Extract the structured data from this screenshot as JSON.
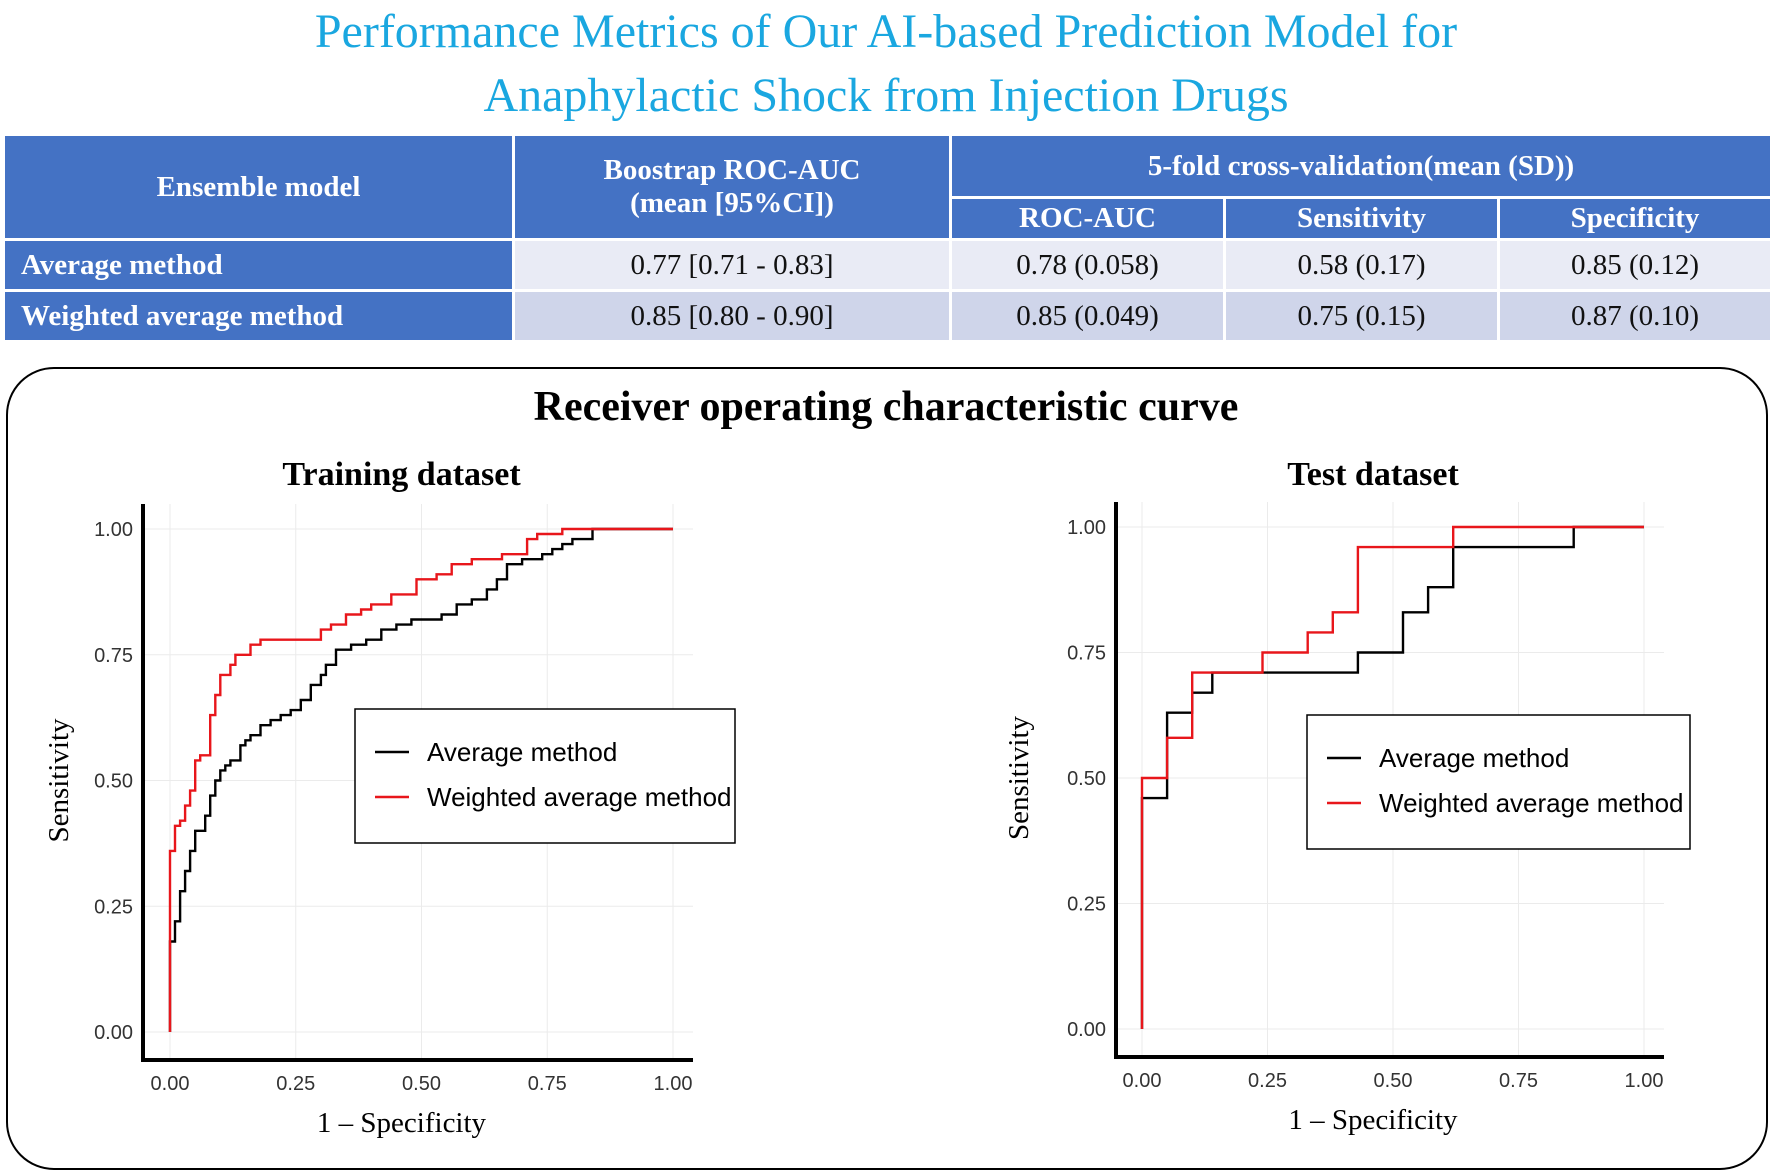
{
  "title": {
    "line1": "Performance Metrics of Our AI-based Prediction Model for",
    "line2": "Anaphylactic Shock from Injection Drugs"
  },
  "table": {
    "col_model": "Ensemble model",
    "col_boot_line1": "Boostrap ROC-AUC",
    "col_boot_line2": "(mean [95%CI])",
    "col_cv": "5-fold cross-validation(mean (SD))",
    "sub_roc": "ROC-AUC",
    "sub_sens": "Sensitivity",
    "sub_spec": "Specificity",
    "rows": [
      {
        "name": "Average method",
        "boot": "0.77 [0.71 - 0.83]",
        "roc": "0.78 (0.058)",
        "sens": "0.58 (0.17)",
        "spec": "0.85 (0.12)"
      },
      {
        "name": "Weighted average method",
        "boot": "0.85 [0.80 - 0.90]",
        "roc": "0.85 (0.049)",
        "sens": "0.75 (0.15)",
        "spec": "0.87 (0.10)"
      }
    ]
  },
  "roc_title": "Receiver operating characteristic curve",
  "colors": {
    "title": "#1aa7e0",
    "header": "#4472c4",
    "average": "#000000",
    "weighted": "#e8161b"
  },
  "chart_data": [
    {
      "type": "line",
      "title": "Training dataset",
      "xlabel": "1 – Specificity",
      "ylabel": "Sensitivity",
      "xlim": [
        0,
        1
      ],
      "ylim": [
        0,
        1
      ],
      "xticks": [
        "0.00",
        "0.25",
        "0.50",
        "0.75",
        "1.00"
      ],
      "yticks": [
        "0.00",
        "0.25",
        "0.50",
        "0.75",
        "1.00"
      ],
      "legend": [
        "Average method",
        "Weighted average method"
      ],
      "legend_position": "center-right",
      "series": [
        {
          "name": "Average method",
          "color": "#000000",
          "x": [
            0.0,
            0.0,
            0.01,
            0.01,
            0.02,
            0.02,
            0.03,
            0.03,
            0.04,
            0.04,
            0.05,
            0.05,
            0.07,
            0.07,
            0.08,
            0.08,
            0.09,
            0.09,
            0.1,
            0.1,
            0.11,
            0.11,
            0.12,
            0.12,
            0.14,
            0.14,
            0.15,
            0.15,
            0.16,
            0.16,
            0.18,
            0.18,
            0.2,
            0.2,
            0.22,
            0.22,
            0.24,
            0.24,
            0.26,
            0.26,
            0.28,
            0.28,
            0.3,
            0.3,
            0.31,
            0.31,
            0.33,
            0.33,
            0.36,
            0.36,
            0.39,
            0.39,
            0.42,
            0.42,
            0.45,
            0.45,
            0.48,
            0.48,
            0.54,
            0.54,
            0.57,
            0.57,
            0.6,
            0.6,
            0.63,
            0.63,
            0.65,
            0.65,
            0.67,
            0.67,
            0.7,
            0.7,
            0.74,
            0.74,
            0.76,
            0.76,
            0.78,
            0.78,
            0.8,
            0.8,
            0.84,
            0.84,
            1.0
          ],
          "y": [
            0.0,
            0.18,
            0.18,
            0.22,
            0.22,
            0.28,
            0.28,
            0.32,
            0.32,
            0.36,
            0.36,
            0.4,
            0.4,
            0.43,
            0.43,
            0.47,
            0.47,
            0.5,
            0.5,
            0.52,
            0.52,
            0.53,
            0.53,
            0.54,
            0.54,
            0.57,
            0.57,
            0.58,
            0.58,
            0.59,
            0.59,
            0.61,
            0.61,
            0.62,
            0.62,
            0.63,
            0.63,
            0.64,
            0.64,
            0.66,
            0.66,
            0.69,
            0.69,
            0.71,
            0.71,
            0.73,
            0.73,
            0.76,
            0.76,
            0.77,
            0.77,
            0.78,
            0.78,
            0.8,
            0.8,
            0.81,
            0.81,
            0.82,
            0.82,
            0.83,
            0.83,
            0.85,
            0.85,
            0.86,
            0.86,
            0.88,
            0.88,
            0.9,
            0.9,
            0.93,
            0.93,
            0.94,
            0.94,
            0.95,
            0.95,
            0.96,
            0.96,
            0.97,
            0.97,
            0.98,
            0.98,
            1.0,
            1.0
          ]
        },
        {
          "name": "Weighted average method",
          "color": "#e8161b",
          "x": [
            0.0,
            0.0,
            0.01,
            0.01,
            0.02,
            0.02,
            0.03,
            0.03,
            0.04,
            0.04,
            0.05,
            0.05,
            0.06,
            0.06,
            0.08,
            0.08,
            0.09,
            0.09,
            0.1,
            0.1,
            0.12,
            0.12,
            0.13,
            0.13,
            0.16,
            0.16,
            0.18,
            0.18,
            0.3,
            0.3,
            0.32,
            0.32,
            0.35,
            0.35,
            0.38,
            0.38,
            0.4,
            0.4,
            0.44,
            0.44,
            0.49,
            0.49,
            0.53,
            0.53,
            0.56,
            0.56,
            0.6,
            0.6,
            0.66,
            0.66,
            0.71,
            0.71,
            0.73,
            0.73,
            0.78,
            0.78,
            0.8,
            0.8,
            1.0
          ],
          "y": [
            0.0,
            0.36,
            0.36,
            0.41,
            0.41,
            0.42,
            0.42,
            0.45,
            0.45,
            0.48,
            0.48,
            0.54,
            0.54,
            0.55,
            0.55,
            0.63,
            0.63,
            0.67,
            0.67,
            0.71,
            0.71,
            0.73,
            0.73,
            0.75,
            0.75,
            0.77,
            0.77,
            0.78,
            0.78,
            0.8,
            0.8,
            0.81,
            0.81,
            0.83,
            0.83,
            0.84,
            0.84,
            0.85,
            0.85,
            0.87,
            0.87,
            0.9,
            0.9,
            0.91,
            0.91,
            0.93,
            0.93,
            0.94,
            0.94,
            0.95,
            0.95,
            0.98,
            0.98,
            0.99,
            0.99,
            1.0,
            1.0,
            1.0,
            1.0
          ]
        }
      ]
    },
    {
      "type": "line",
      "title": "Test dataset",
      "xlabel": "1 – Specificity",
      "ylabel": "Sensitivity",
      "xlim": [
        0,
        1
      ],
      "ylim": [
        0,
        1
      ],
      "xticks": [
        "0.00",
        "0.25",
        "0.50",
        "0.75",
        "1.00"
      ],
      "yticks": [
        "0.00",
        "0.25",
        "0.50",
        "0.75",
        "1.00"
      ],
      "legend": [
        "Average method",
        "Weighted average method"
      ],
      "legend_position": "center-right",
      "series": [
        {
          "name": "Average method",
          "color": "#000000",
          "x": [
            0.0,
            0.0,
            0.05,
            0.05,
            0.1,
            0.1,
            0.14,
            0.14,
            0.19,
            0.19,
            0.43,
            0.43,
            0.52,
            0.52,
            0.57,
            0.57,
            0.62,
            0.62,
            0.86,
            0.86,
            1.0
          ],
          "y": [
            0.0,
            0.46,
            0.46,
            0.63,
            0.63,
            0.67,
            0.67,
            0.71,
            0.71,
            0.71,
            0.71,
            0.75,
            0.75,
            0.83,
            0.83,
            0.88,
            0.88,
            0.96,
            0.96,
            1.0,
            1.0
          ]
        },
        {
          "name": "Weighted average method",
          "color": "#e8161b",
          "x": [
            0.0,
            0.0,
            0.05,
            0.05,
            0.1,
            0.1,
            0.24,
            0.24,
            0.33,
            0.33,
            0.38,
            0.38,
            0.43,
            0.43,
            0.62,
            0.62,
            1.0
          ],
          "y": [
            0.0,
            0.5,
            0.5,
            0.58,
            0.58,
            0.71,
            0.71,
            0.75,
            0.75,
            0.79,
            0.79,
            0.83,
            0.83,
            0.96,
            0.96,
            1.0,
            1.0
          ]
        }
      ]
    }
  ]
}
